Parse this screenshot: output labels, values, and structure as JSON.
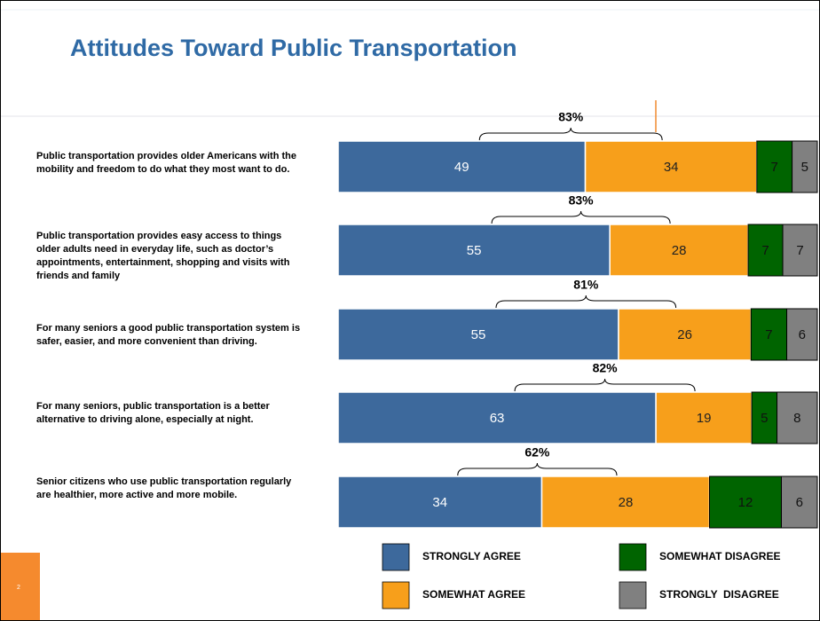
{
  "chart_data": {
    "type": "stacked-bar-horizontal",
    "title": "Attitudes Toward Public Transportation",
    "page_number": "2",
    "categories": [
      "Public transportation provides older Americans with the mobility and freedom to do what they most want to do.",
      "Public transportation provides easy access to things older adults need in everyday life, such as doctor’s appointments, entertainment, shopping and visits with friends and family",
      "For many seniors a good public transportation system is safer, easier, and more convenient than driving.",
      "For many seniors, public transportation is a better alternative to driving alone, especially at night.",
      "Senior citizens who use public transportation regularly are healthier, more active and more mobile."
    ],
    "series": [
      {
        "name": "STRONGLY AGREE",
        "color": "#3d699c",
        "text_color": "#ffffff",
        "values": [
          49,
          55,
          55,
          63,
          34
        ]
      },
      {
        "name": "SOMEWHAT AGREE",
        "color": "#f79f1b",
        "text_color": "#222222",
        "values": [
          34,
          28,
          26,
          19,
          28
        ]
      },
      {
        "name": "SOMEWHAT DISAGREE",
        "color": "#006400",
        "text_color": "#111111",
        "values": [
          7,
          7,
          7,
          5,
          12
        ]
      },
      {
        "name": "STRONGLY  DISAGREE",
        "color": "#808080",
        "text_color": "#111111",
        "values": [
          5,
          7,
          6,
          8,
          6
        ]
      }
    ],
    "annotations": [
      "83%",
      "83%",
      "81%",
      "82%",
      "62%"
    ]
  }
}
